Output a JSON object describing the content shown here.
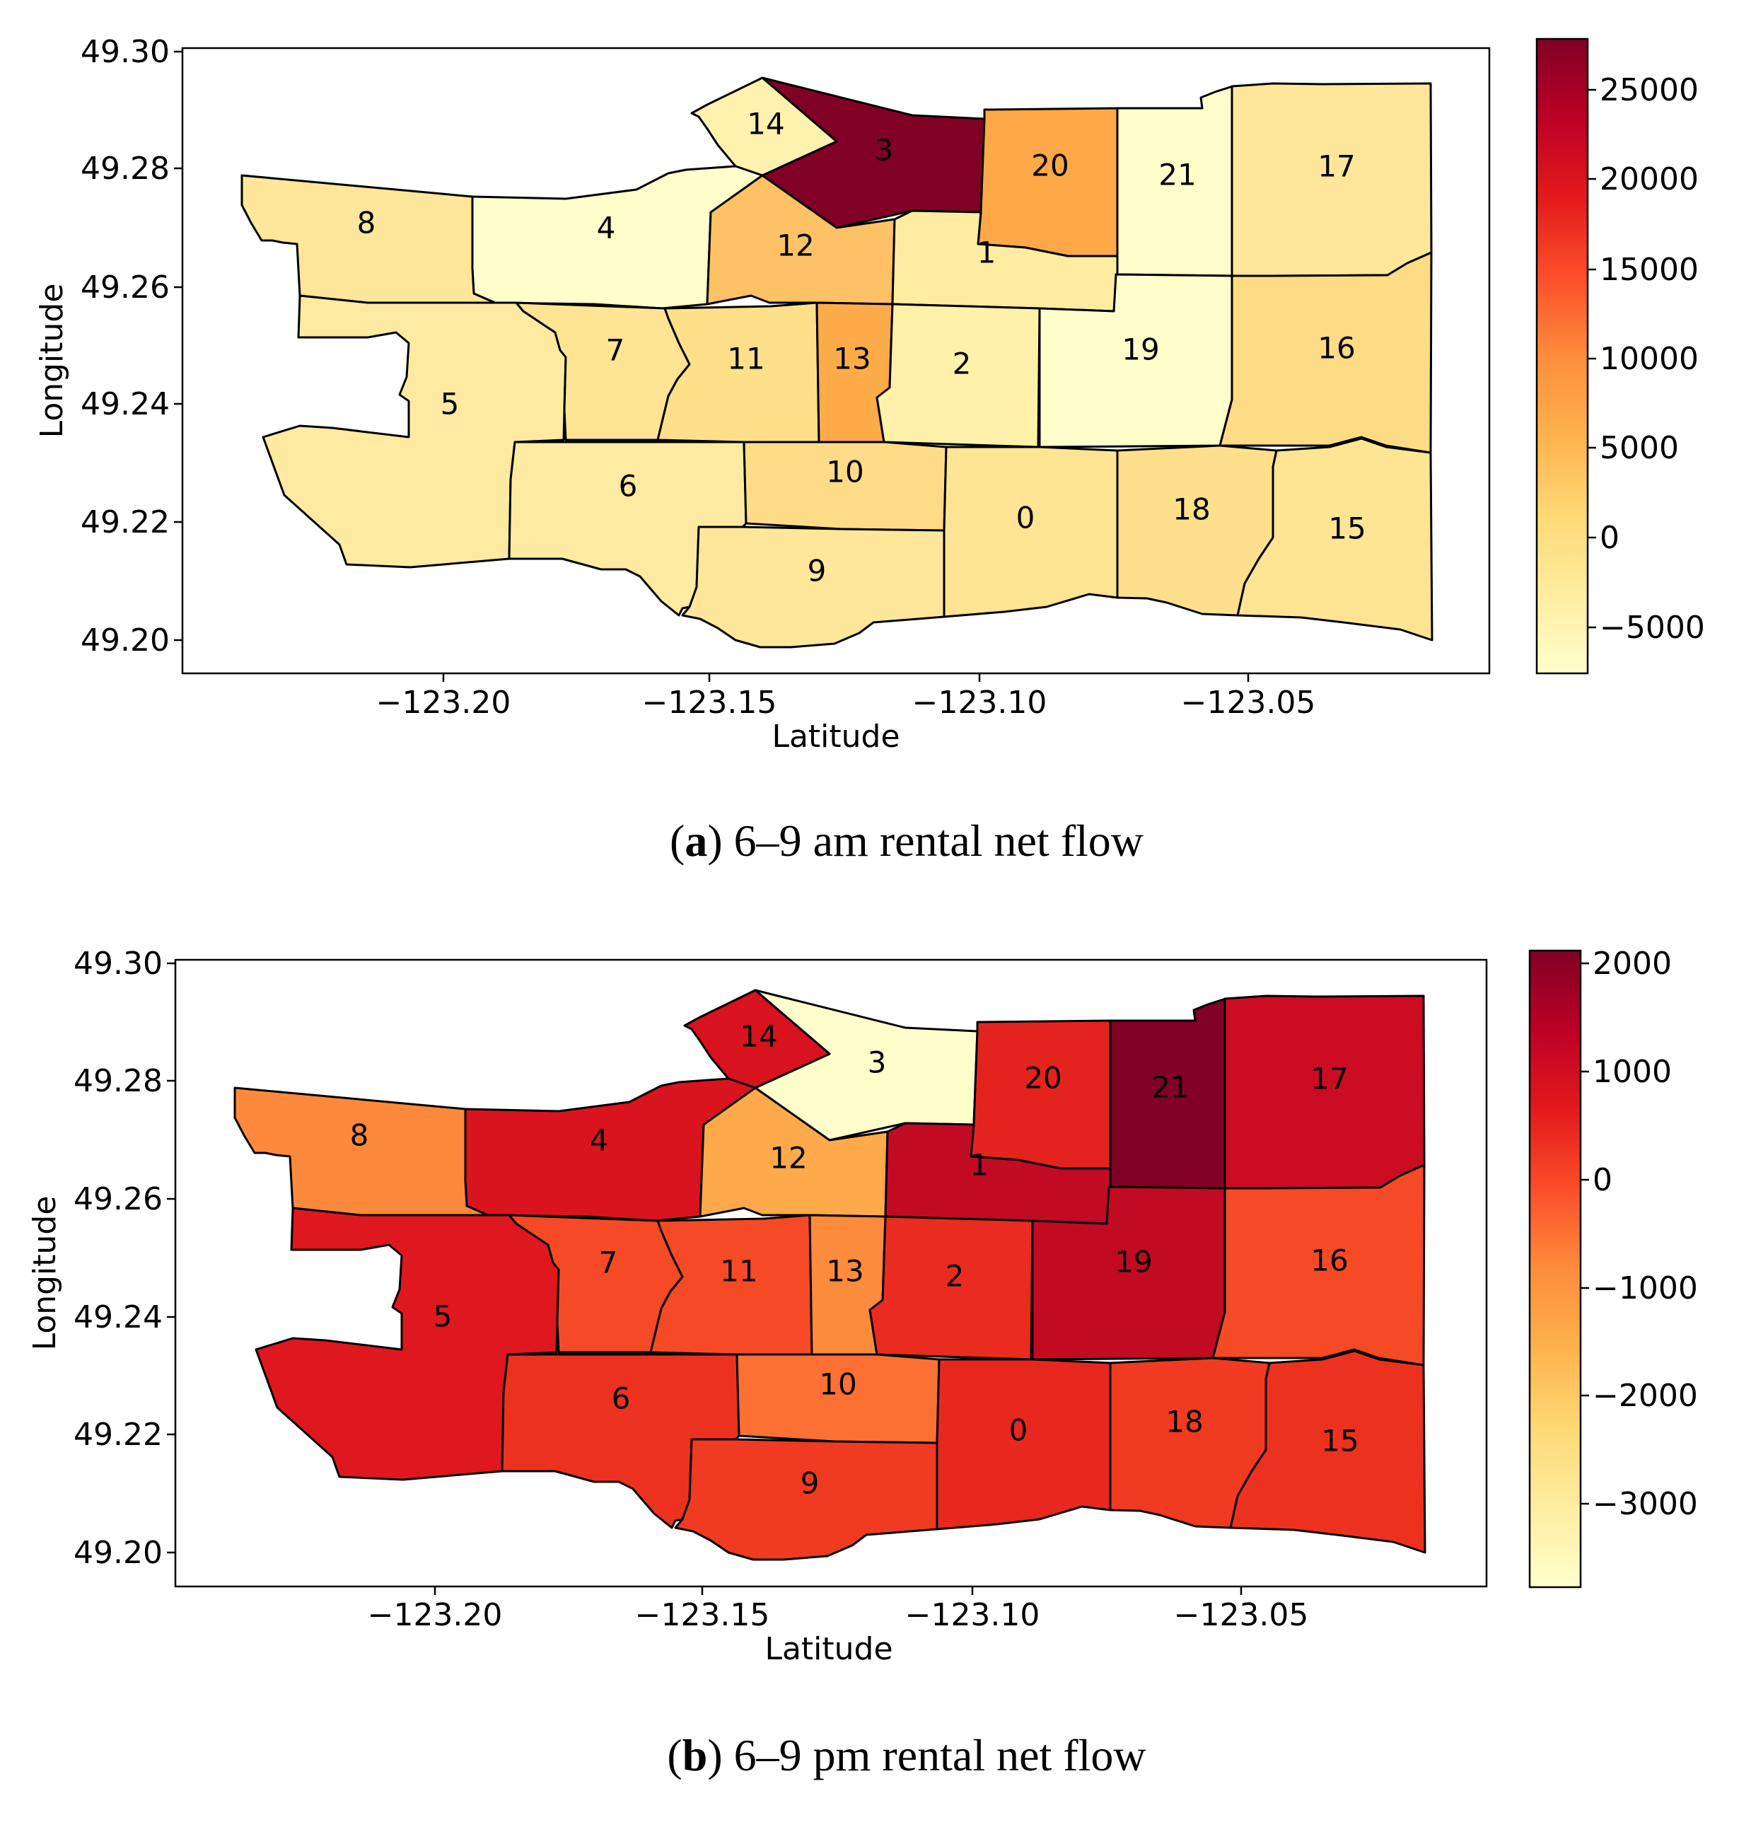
{
  "map_data": {
    "x_ticks": [
      "−123.20",
      "−123.15",
      "−123.10",
      "−123.05"
    ],
    "y_ticks": [
      "49.30",
      "49.28",
      "49.26",
      "49.24",
      "49.22",
      "49.20"
    ],
    "xlabel": "Latitude",
    "ylabel": "Longitude",
    "panels": [
      {
        "caption_letter": "a",
        "caption_text": ") 6–9 am rental net flow",
        "colorbar_ticks": [
          "25000",
          "20000",
          "15000",
          "10000",
          "5000",
          "0",
          "−5000"
        ],
        "region_colors": {
          "0": "#fee493",
          "1": "#feeca0",
          "2": "#fff1aa",
          "3": "#800026",
          "4": "#ffffcc",
          "5": "#feeaa0",
          "6": "#feeaa0",
          "7": "#fee493",
          "8": "#fee79a",
          "9": "#fee79a",
          "10": "#fedc87",
          "11": "#fedf8a",
          "12": "#fec166",
          "13": "#feab4a",
          "14": "#fff2ae",
          "15": "#fee493",
          "16": "#fedb85",
          "17": "#fee79a",
          "18": "#fee08c",
          "19": "#ffffcc",
          "20": "#fea848",
          "21": "#ffffcc"
        }
      },
      {
        "caption_letter": "b",
        "caption_text": ") 6–9 pm rental net flow",
        "colorbar_ticks": [
          "2000",
          "1000",
          "0",
          "−1000",
          "−2000",
          "−3000"
        ],
        "region_colors": {
          "0": "#e8271f",
          "1": "#c30a23",
          "2": "#ea2b1f",
          "3": "#ffffcc",
          "4": "#da141e",
          "5": "#de181e",
          "6": "#ec321f",
          "7": "#f54a25",
          "8": "#fd8a3c",
          "9": "#f03a22",
          "10": "#fc7034",
          "11": "#f54a25",
          "12": "#feaa4a",
          "13": "#fd8b3c",
          "14": "#d8121e",
          "15": "#ec321f",
          "16": "#f54a25",
          "17": "#cb0c22",
          "18": "#f03a22",
          "19": "#c20a23",
          "20": "#e5231e",
          "21": "#800026"
        }
      }
    ]
  }
}
